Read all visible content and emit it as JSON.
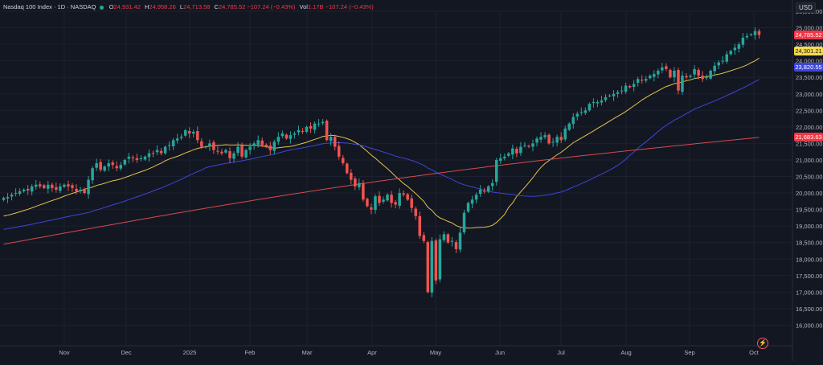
{
  "header": {
    "symbol": "Nasdaq 100 Index · 1D · NASDAQ",
    "o_label": "O",
    "o_value": "24,931.42",
    "h_label": "H",
    "h_value": "24,958.26",
    "l_label": "L",
    "l_value": "24,713.58",
    "c_label": "C",
    "c_value": "24,785.52",
    "change": "−107.24 (−0.43%)",
    "vol_label": "Vol",
    "vol_value": "1.17B",
    "vol_change": "−107.24 (−0.43%)"
  },
  "currency": "USD",
  "colors": {
    "background": "#131722",
    "up": "#26a69a",
    "down": "#ef5350",
    "ma_short": "#e7c24a",
    "ma_mid": "#3d46d8",
    "ma_long": "#d64a4e"
  },
  "price_tags": {
    "last": "24,785.52",
    "ma_short": "24,301.21",
    "ma_mid": "23,820.55",
    "ma_long": "21,683.63"
  },
  "chart_data": {
    "type": "candlestick",
    "title": "Nasdaq 100 Index",
    "ylim": [
      15500,
      25500
    ],
    "y_ticks": [
      "25,500.00",
      "25,000.00",
      "24,500.00",
      "24,000.00",
      "23,500.00",
      "23,000.00",
      "22,500.00",
      "22,000.00",
      "21,500.00",
      "21,000.00",
      "20,500.00",
      "20,000.00",
      "19,500.00",
      "19,000.00",
      "18,500.00",
      "18,000.00",
      "17,500.00",
      "17,000.00",
      "16,500.00",
      "16,000.00"
    ],
    "x_ticks": [
      "Nov",
      "Dec",
      "2025",
      "Feb",
      "Mar",
      "Apr",
      "May",
      "Jun",
      "Jul",
      "Aug",
      "Sep",
      "Oct"
    ],
    "close": [
      19850,
      19880,
      19950,
      20000,
      20050,
      20100,
      20080,
      20200,
      20250,
      20200,
      20150,
      20250,
      20150,
      20100,
      20200,
      20250,
      20200,
      20150,
      20050,
      20100,
      20000,
      20400,
      20750,
      20900,
      20700,
      20800,
      20900,
      20850,
      20750,
      20850,
      21000,
      21100,
      21050,
      21000,
      21050,
      21100,
      21200,
      21200,
      21300,
      21200,
      21400,
      21450,
      21600,
      21650,
      21700,
      21900,
      21800,
      21850,
      21600,
      21400,
      21400,
      21500,
      21300,
      21250,
      21200,
      21300,
      21050,
      21200,
      21400,
      21100,
      21300,
      21400,
      21500,
      21600,
      21450,
      21400,
      21300,
      21550,
      21700,
      21800,
      21650,
      21750,
      21800,
      21900,
      21850,
      22000,
      21950,
      22100,
      22100,
      22150,
      21600,
      21700,
      21400,
      21100,
      20900,
      20600,
      20400,
      20200,
      20300,
      19800,
      19600,
      19500,
      19900,
      19700,
      19800,
      19950,
      19700,
      19650,
      20000,
      19950,
      19800,
      19550,
      19300,
      18700,
      18550,
      17000,
      18550,
      17350,
      18600,
      18750,
      18500,
      18550,
      18300,
      18800,
      19400,
      19700,
      19800,
      19950,
      20100,
      20050,
      20200,
      20300,
      21000,
      21050,
      21100,
      21200,
      21350,
      21200,
      21400,
      21450,
      21400,
      21500,
      21650,
      21700,
      21750,
      21500,
      21550,
      21700,
      21600,
      21950,
      22100,
      22300,
      22400,
      22450,
      22500,
      22700,
      22750,
      22750,
      22800,
      22900,
      22950,
      23000,
      23050,
      23100,
      23250,
      23200,
      23300,
      23450,
      23400,
      23450,
      23550,
      23600,
      23700,
      23800,
      23750,
      23500,
      23700,
      23100,
      23550,
      23500,
      23550,
      23750,
      23550,
      23450,
      23500,
      23700,
      23850,
      23950,
      24000,
      24200,
      24300,
      24400,
      24500,
      24700,
      24750,
      24800,
      24900,
      24785.52
    ],
    "ma_short": {
      "start": 19300,
      "end": 24301.21
    },
    "ma_mid": {
      "start": 18900,
      "end": 23820.55
    },
    "ma_long": {
      "start": 18450,
      "end": 21683.63
    }
  }
}
